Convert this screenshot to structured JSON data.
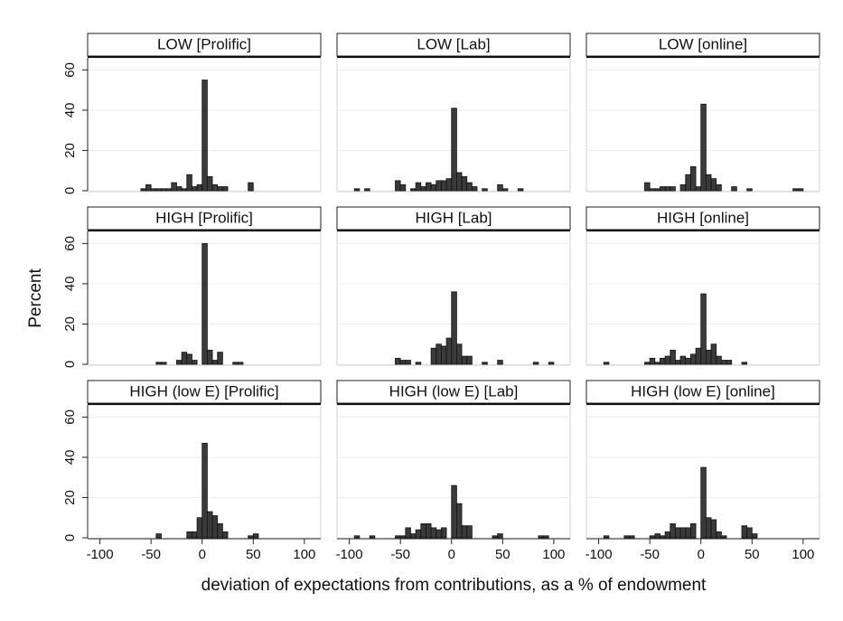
{
  "y_label": "Percent",
  "x_label": "deviation of expectations from contributions, as a % of endowment",
  "chart_data": [
    {
      "type": "histogram",
      "title": "LOW [Prolific]",
      "color": "#3a3a3a",
      "xlim": [
        -112,
        116
      ],
      "ylim": [
        0,
        66
      ],
      "xticks": [
        -100,
        -50,
        0,
        50,
        100
      ],
      "yticks": [
        0,
        20,
        40,
        60
      ],
      "grid": true,
      "bins": [
        -100,
        -95,
        -90,
        -85,
        -80,
        -75,
        -70,
        -65,
        -60,
        -55,
        -50,
        -45,
        -40,
        -35,
        -30,
        -25,
        -20,
        -15,
        -10,
        -5,
        0,
        5,
        10,
        15,
        20,
        25,
        30,
        35,
        40,
        45,
        50,
        55,
        60,
        65,
        70,
        75,
        80,
        85,
        90,
        95,
        100,
        105
      ],
      "values": [
        0,
        0,
        0,
        0,
        0,
        0,
        0,
        0,
        1,
        3,
        1,
        1,
        1,
        1,
        4,
        2,
        1,
        8,
        2,
        3,
        55,
        7,
        3,
        2,
        2,
        0,
        0,
        0,
        0,
        4,
        0,
        0,
        0,
        0,
        0,
        0,
        0,
        0,
        0,
        0,
        0
      ]
    },
    {
      "type": "histogram",
      "title": "LOW [Lab]",
      "color": "#3a3a3a",
      "xlim": [
        -112,
        116
      ],
      "ylim": [
        0,
        66
      ],
      "xticks": [
        -100,
        -50,
        0,
        50,
        100
      ],
      "yticks": [
        0,
        20,
        40,
        60
      ],
      "grid": true,
      "bins": [
        -100,
        -95,
        -90,
        -85,
        -80,
        -75,
        -70,
        -65,
        -60,
        -55,
        -50,
        -45,
        -40,
        -35,
        -30,
        -25,
        -20,
        -15,
        -10,
        -5,
        0,
        5,
        10,
        15,
        20,
        25,
        30,
        35,
        40,
        45,
        50,
        55,
        60,
        65,
        70,
        75,
        80,
        85,
        90,
        95,
        100,
        105
      ],
      "values": [
        0,
        1,
        0,
        1,
        0,
        0,
        0,
        0,
        0,
        5,
        3,
        0,
        1,
        4,
        2,
        4,
        3,
        5,
        5,
        6,
        41,
        9,
        7,
        4,
        2,
        0,
        1,
        0,
        0,
        3,
        1,
        0,
        0,
        1,
        0,
        0,
        0,
        0,
        0,
        0,
        0
      ]
    },
    {
      "type": "histogram",
      "title": "LOW [online]",
      "color": "#3a3a3a",
      "xlim": [
        -112,
        116
      ],
      "ylim": [
        0,
        66
      ],
      "xticks": [
        -100,
        -50,
        0,
        50,
        100
      ],
      "yticks": [
        0,
        20,
        40,
        60
      ],
      "grid": true,
      "bins": [
        -100,
        -95,
        -90,
        -85,
        -80,
        -75,
        -70,
        -65,
        -60,
        -55,
        -50,
        -45,
        -40,
        -35,
        -30,
        -25,
        -20,
        -15,
        -10,
        -5,
        0,
        5,
        10,
        15,
        20,
        25,
        30,
        35,
        40,
        45,
        50,
        55,
        60,
        65,
        70,
        75,
        80,
        85,
        90,
        95,
        100,
        105
      ],
      "values": [
        0,
        0,
        0,
        0,
        0,
        0,
        0,
        0,
        0,
        4,
        1,
        1,
        2,
        2,
        2,
        0,
        3,
        8,
        12,
        2,
        43,
        8,
        6,
        3,
        0,
        0,
        2,
        0,
        0,
        1,
        0,
        0,
        0,
        0,
        0,
        0,
        0,
        0,
        1,
        1,
        0
      ]
    },
    {
      "type": "histogram",
      "title": "HIGH [Prolific]",
      "color": "#3a3a3a",
      "xlim": [
        -112,
        116
      ],
      "ylim": [
        0,
        66
      ],
      "xticks": [
        -100,
        -50,
        0,
        50,
        100
      ],
      "yticks": [
        0,
        20,
        40,
        60
      ],
      "grid": true,
      "bins": [
        -100,
        -95,
        -90,
        -85,
        -80,
        -75,
        -70,
        -65,
        -60,
        -55,
        -50,
        -45,
        -40,
        -35,
        -30,
        -25,
        -20,
        -15,
        -10,
        -5,
        0,
        5,
        10,
        15,
        20,
        25,
        30,
        35,
        40,
        45,
        50,
        55,
        60,
        65,
        70,
        75,
        80,
        85,
        90,
        95,
        100,
        105
      ],
      "values": [
        0,
        0,
        0,
        0,
        0,
        0,
        0,
        0,
        0,
        0,
        0,
        1,
        1,
        0,
        0,
        2,
        6,
        5,
        2,
        0,
        60,
        7,
        2,
        6,
        0,
        0,
        1,
        1,
        0,
        0,
        0,
        0,
        0,
        0,
        0,
        0,
        0,
        0,
        0,
        0,
        0
      ]
    },
    {
      "type": "histogram",
      "title": "HIGH [Lab]",
      "color": "#3a3a3a",
      "xlim": [
        -112,
        116
      ],
      "ylim": [
        0,
        66
      ],
      "xticks": [
        -100,
        -50,
        0,
        50,
        100
      ],
      "yticks": [
        0,
        20,
        40,
        60
      ],
      "grid": true,
      "bins": [
        -100,
        -95,
        -90,
        -85,
        -80,
        -75,
        -70,
        -65,
        -60,
        -55,
        -50,
        -45,
        -40,
        -35,
        -30,
        -25,
        -20,
        -15,
        -10,
        -5,
        0,
        5,
        10,
        15,
        20,
        25,
        30,
        35,
        40,
        45,
        50,
        55,
        60,
        65,
        70,
        75,
        80,
        85,
        90,
        95,
        100,
        105
      ],
      "values": [
        0,
        0,
        0,
        0,
        0,
        0,
        0,
        0,
        0,
        3,
        2,
        2,
        0,
        1,
        0,
        0,
        8,
        10,
        9,
        13,
        36,
        10,
        4,
        4,
        0,
        0,
        1,
        0,
        0,
        2,
        0,
        0,
        0,
        0,
        0,
        0,
        1,
        0,
        0,
        1,
        0
      ]
    },
    {
      "type": "histogram",
      "title": "HIGH [online]",
      "color": "#3a3a3a",
      "xlim": [
        -112,
        116
      ],
      "ylim": [
        0,
        66
      ],
      "xticks": [
        -100,
        -50,
        0,
        50,
        100
      ],
      "yticks": [
        0,
        20,
        40,
        60
      ],
      "grid": true,
      "bins": [
        -100,
        -95,
        -90,
        -85,
        -80,
        -75,
        -70,
        -65,
        -60,
        -55,
        -50,
        -45,
        -40,
        -35,
        -30,
        -25,
        -20,
        -15,
        -10,
        -5,
        0,
        5,
        10,
        15,
        20,
        25,
        30,
        35,
        40,
        45,
        50,
        55,
        60,
        65,
        70,
        75,
        80,
        85,
        90,
        95,
        100,
        105
      ],
      "values": [
        0,
        1,
        0,
        0,
        0,
        0,
        0,
        0,
        0,
        1,
        3,
        1,
        3,
        4,
        7,
        2,
        4,
        3,
        5,
        8,
        35,
        7,
        10,
        4,
        2,
        2,
        0,
        0,
        1,
        0,
        0,
        0,
        0,
        0,
        0,
        0,
        0,
        0,
        0,
        0,
        0
      ]
    },
    {
      "type": "histogram",
      "title": "HIGH (low E) [Prolific]",
      "color": "#3a3a3a",
      "xlim": [
        -112,
        116
      ],
      "ylim": [
        0,
        66
      ],
      "xticks": [
        -100,
        -50,
        0,
        50,
        100
      ],
      "yticks": [
        0,
        20,
        40,
        60
      ],
      "grid": true,
      "bins": [
        -100,
        -95,
        -90,
        -85,
        -80,
        -75,
        -70,
        -65,
        -60,
        -55,
        -50,
        -45,
        -40,
        -35,
        -30,
        -25,
        -20,
        -15,
        -10,
        -5,
        0,
        5,
        10,
        15,
        20,
        25,
        30,
        35,
        40,
        45,
        50,
        55,
        60,
        65,
        70,
        75,
        80,
        85,
        90,
        95,
        100,
        105
      ],
      "values": [
        0,
        0,
        0,
        0,
        0,
        0,
        0,
        0,
        0,
        0,
        0,
        2,
        0,
        0,
        0,
        0,
        0,
        3,
        3,
        10,
        47,
        13,
        11,
        7,
        3,
        0,
        0,
        0,
        0,
        1,
        2,
        0,
        0,
        0,
        0,
        0,
        0,
        0,
        0,
        0,
        0
      ]
    },
    {
      "type": "histogram",
      "title": "HIGH (low E) [Lab]",
      "color": "#3a3a3a",
      "xlim": [
        -112,
        116
      ],
      "ylim": [
        0,
        66
      ],
      "xticks": [
        -100,
        -50,
        0,
        50,
        100
      ],
      "yticks": [
        0,
        20,
        40,
        60
      ],
      "grid": true,
      "bins": [
        -100,
        -95,
        -90,
        -85,
        -80,
        -75,
        -70,
        -65,
        -60,
        -55,
        -50,
        -45,
        -40,
        -35,
        -30,
        -25,
        -20,
        -15,
        -10,
        -5,
        0,
        5,
        10,
        15,
        20,
        25,
        30,
        35,
        40,
        45,
        50,
        55,
        60,
        65,
        70,
        75,
        80,
        85,
        90,
        95,
        100,
        105
      ],
      "values": [
        0,
        1,
        0,
        0,
        1,
        0,
        0,
        0,
        0,
        1,
        1,
        5,
        2,
        4,
        7,
        7,
        5,
        4,
        5,
        0,
        26,
        17,
        6,
        6,
        0,
        0,
        0,
        0,
        1,
        2,
        0,
        0,
        0,
        0,
        0,
        0,
        0,
        1,
        1,
        0,
        0
      ]
    },
    {
      "type": "histogram",
      "title": "HIGH (low E) [online]",
      "color": "#3a3a3a",
      "xlim": [
        -112,
        116
      ],
      "ylim": [
        0,
        66
      ],
      "xticks": [
        -100,
        -50,
        0,
        50,
        100
      ],
      "yticks": [
        0,
        20,
        40,
        60
      ],
      "grid": true,
      "bins": [
        -100,
        -95,
        -90,
        -85,
        -80,
        -75,
        -70,
        -65,
        -60,
        -55,
        -50,
        -45,
        -40,
        -35,
        -30,
        -25,
        -20,
        -15,
        -10,
        -5,
        0,
        5,
        10,
        15,
        20,
        25,
        30,
        35,
        40,
        45,
        50,
        55,
        60,
        65,
        70,
        75,
        80,
        85,
        90,
        95,
        100,
        105
      ],
      "values": [
        0,
        1,
        0,
        0,
        0,
        1,
        1,
        0,
        0,
        0,
        1,
        2,
        1,
        3,
        7,
        5,
        5,
        5,
        7,
        0,
        35,
        10,
        9,
        3,
        1,
        0,
        0,
        0,
        6,
        5,
        2,
        0,
        0,
        0,
        0,
        0,
        0,
        0,
        0,
        0,
        0
      ]
    }
  ]
}
